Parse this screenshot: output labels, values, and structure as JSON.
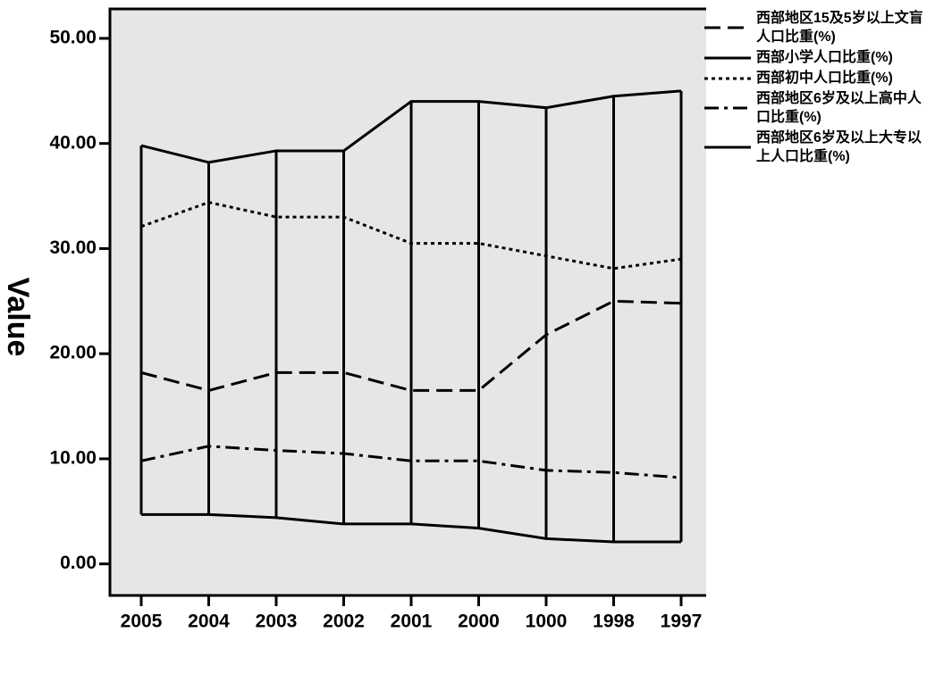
{
  "chart_data": {
    "type": "line",
    "y_label": "Value",
    "categories": [
      "2005",
      "2004",
      "2003",
      "2002",
      "2001",
      "2000",
      "1000",
      "1998",
      "1997"
    ],
    "series": [
      {
        "name": "西部地区15及5岁以上文盲人口比重(%)",
        "color": "#000000",
        "dash": "dashed",
        "values": [
          18.2,
          16.5,
          18.2,
          18.2,
          16.5,
          16.5,
          21.8,
          25.0,
          24.8
        ]
      },
      {
        "name": "西部小学人口比重(%)",
        "color": "#000000",
        "dash": "solid",
        "values": [
          39.8,
          38.2,
          39.3,
          39.3,
          44.0,
          44.0,
          43.4,
          44.5,
          45.0
        ]
      },
      {
        "name": "西部初中人口比重(%)",
        "color": "#000000",
        "dash": "dotted",
        "values": [
          32.1,
          34.4,
          33.0,
          33.0,
          30.5,
          30.5,
          29.3,
          28.1,
          29.0
        ]
      },
      {
        "name": "西部地区6岁及以上高中人口比重(%)",
        "color": "#000000",
        "dash": "dashdot",
        "values": [
          9.8,
          11.2,
          10.8,
          10.5,
          9.8,
          9.8,
          8.9,
          8.7,
          8.2
        ]
      },
      {
        "name": "西部地区6岁及以上大专以上人口比重(%)",
        "color": "#000000",
        "dash": "solid",
        "values": [
          4.7,
          4.7,
          4.4,
          3.8,
          3.8,
          3.4,
          2.4,
          2.1,
          2.1
        ]
      }
    ],
    "high_low_lines": true,
    "background": "#e6e6e6",
    "ylim": [
      -3,
      52.8
    ],
    "yticks": [
      {
        "value": 0,
        "label": "0.00"
      },
      {
        "value": 10,
        "label": "10.00"
      },
      {
        "value": 20,
        "label": "20.00"
      },
      {
        "value": 30,
        "label": "30.00"
      },
      {
        "value": 40,
        "label": "40.00"
      },
      {
        "value": 50,
        "label": "50.00"
      }
    ]
  }
}
